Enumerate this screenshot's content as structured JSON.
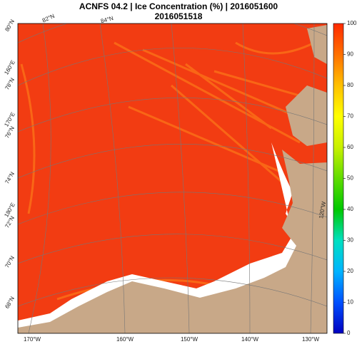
{
  "title": "ACNFS 04.2  |  Ice Concentration (%)  |  2016051600",
  "subtitle": "2016051518",
  "graticule_labels": {
    "top": [
      "82°N",
      "84°N"
    ],
    "left": [
      "80°N",
      "160°E",
      "78°N",
      "170°E",
      "76°N",
      "74°N",
      "180°E",
      "72°N",
      "70°N",
      "68°N"
    ],
    "bottom": [
      "170°W",
      "160°W",
      "150°W",
      "140°W",
      "130°W"
    ],
    "right": [
      "120°W"
    ]
  },
  "colorbar": {
    "range": [
      0,
      100
    ],
    "ticks": [
      0,
      10,
      20,
      30,
      40,
      50,
      60,
      70,
      80,
      90,
      100
    ],
    "colors": [
      "#0000c0",
      "#0050ff",
      "#00b4ff",
      "#00e0c0",
      "#00c800",
      "#60dc00",
      "#c8f000",
      "#ffff00",
      "#ffc000",
      "#ff7000",
      "#ff2a00"
    ]
  }
}
